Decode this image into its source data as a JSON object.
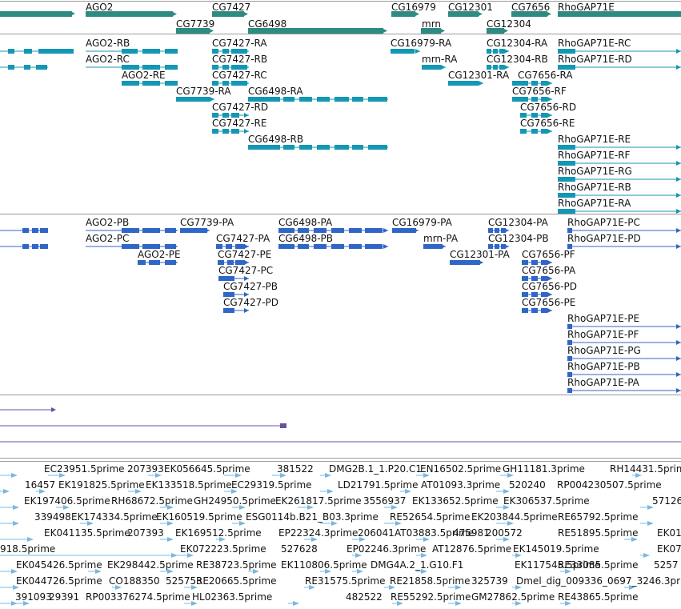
{
  "colors": {
    "gene": "#2e8b82",
    "transcript_a": "#1497b4",
    "transcript_b": "#2f66c8",
    "insertion": "#6a4fa0",
    "est": "#7ab8e0",
    "separator": "#9a9a9a"
  },
  "tracks": {
    "genes": [
      {
        "label": "AGO2",
        "x0": 107,
        "x1": 222
      },
      {
        "label": "CG7427",
        "x0": 265,
        "x1": 311
      },
      {
        "label": "CG7739",
        "x0": 220,
        "x1": 268
      },
      {
        "label": "CG6498",
        "x0": 310,
        "x1": 485
      },
      {
        "label": "CG16979",
        "x0": 489,
        "x1": 525
      },
      {
        "label": "mrn",
        "x0": 526,
        "x1": 557
      },
      {
        "label": "CG12301",
        "x0": 560,
        "x1": 604
      },
      {
        "label": "CG12304",
        "x0": 608,
        "x1": 636
      },
      {
        "label": "CG7656",
        "x0": 639,
        "x1": 690
      },
      {
        "label": "RhoGAP71E",
        "x0": 697,
        "x1": 851
      }
    ],
    "transcripts_a": [
      "AGO2-RB",
      "AGO2-RC",
      "AGO2-RE",
      "CG7739-RA",
      "CG7427-RA",
      "CG7427-RB",
      "CG7427-RC",
      "CG7427-RD",
      "CG7427-RE",
      "CG6498-RA",
      "CG6498-RB",
      "CG16979-RA",
      "mrn-RA",
      "CG12301-RA",
      "CG12304-RA",
      "CG12304-RB",
      "CG7656-RA",
      "CG7656-RF",
      "CG7656-RD",
      "CG7656-RE",
      "RhoGAP71E-RC",
      "RhoGAP71E-RD",
      "RhoGAP71E-RE",
      "RhoGAP71E-RF",
      "RhoGAP71E-RG",
      "RhoGAP71E-RB",
      "RhoGAP71E-RA"
    ],
    "transcripts_b": [
      "AGO2-PB",
      "AGO2-PC",
      "AGO2-PE",
      "CG7739-PA",
      "CG7427-PA",
      "CG7427-PE",
      "CG7427-PC",
      "CG7427-PB",
      "CG7427-PD",
      "CG6498-PA",
      "CG6498-PB",
      "CG16979-PA",
      "mrn-PA",
      "CG12301-PA",
      "CG12304-PA",
      "CG12304-PB",
      "CG7656-PF",
      "CG7656-PA",
      "CG7656-PD",
      "CG7656-PE",
      "RhoGAP71E-PC",
      "RhoGAP71E-PD",
      "RhoGAP71E-PE",
      "RhoGAP71E-PF",
      "RhoGAP71E-PG",
      "RhoGAP71E-PB",
      "RhoGAP71E-PA"
    ],
    "ests": [
      "EC23951.5prime",
      "207393",
      "EK056645.5prime",
      "381522",
      "DMG2B.1_1.P20.C1",
      "EN16502.5prime",
      "GH11181.3prime",
      "RH14431.5prime",
      "16457",
      "EK191825.5prime",
      "EK133518.5prime",
      "EC29319.5prime",
      "LD21791.5prime",
      "AT01093.3prime",
      "520240",
      "RP004230507.5prime",
      "EK197406.5prime",
      "RH68672.5prime",
      "GH24950.5prime",
      "EK261817.5prime",
      "3556937",
      "EK133652.5prime",
      "EK306537.5prime",
      "57126",
      "339498",
      "EK174334.5prime",
      "EK160519.5prime",
      "ESG0114b.B21_B03.3prime",
      "RE52654.5prime",
      "EK203844.5prime",
      "RE65792.5prime",
      "EK041135.5prime",
      "207393",
      "EK169512.5prime",
      "EP22324.3prime",
      "206041",
      "AT03883.5prime",
      "475981",
      "200572",
      "RE51895.5prime",
      "EK01",
      "918.5prime",
      "EK072223.5prime",
      "527628",
      "EP02246.3prime",
      "AT12876.5prime",
      "EK145019.5prime",
      "EK07",
      "EK045426.5prime",
      "EK298442.5prime",
      "RE38723.5prime",
      "EK110806.5prime",
      "DMG4A.2_1.G10.F1",
      "EK117545.5prime",
      "RE33085.5prime",
      "5257",
      "EK044726.5prime",
      "CO188350",
      "525753",
      "RE20665.5prime",
      "RE31575.5prime",
      "RE21858.5prime",
      "325739",
      "Dmel_dig_009336_0697_3246.3prime",
      "391093",
      "29391",
      "RP003376274.5prime",
      "HL02363.5prime",
      "482522",
      "RE55292.5prime",
      "GM27862.5prime",
      "RE43865.5prime"
    ]
  }
}
